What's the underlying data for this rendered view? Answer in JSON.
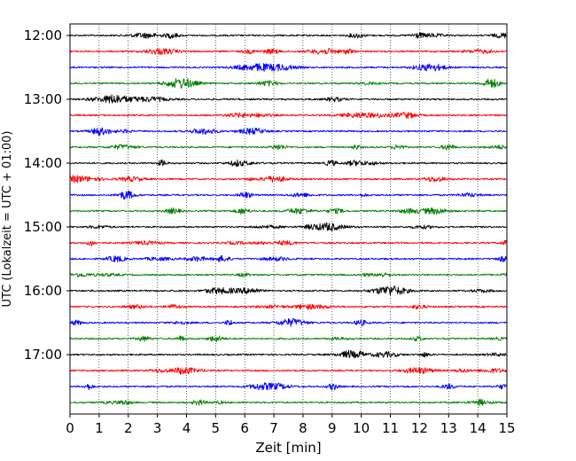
{
  "chart_data": {
    "type": "line",
    "title": "",
    "xlabel": "Zeit  [min]",
    "ylabel": "UTC (Lokalzeit = UTC + 01:00)",
    "xlim": [
      0,
      15
    ],
    "xticks": [
      "0",
      "1",
      "2",
      "3",
      "4",
      "5",
      "6",
      "7",
      "8",
      "9",
      "10",
      "11",
      "12",
      "13",
      "14",
      "15"
    ],
    "ytick_labels": [
      "12:00",
      "13:00",
      "14:00",
      "15:00",
      "16:00",
      "17:00"
    ],
    "trace_start_times": [
      "12:00",
      "12:15",
      "12:30",
      "12:45",
      "13:00",
      "13:15",
      "13:30",
      "13:45",
      "14:00",
      "14:15",
      "14:30",
      "14:45",
      "15:00",
      "15:15",
      "15:30",
      "15:45",
      "16:00",
      "16:15",
      "16:30",
      "16:45",
      "17:00",
      "17:15",
      "17:30",
      "17:45"
    ],
    "trace_minutes_each": 15,
    "trace_colors": [
      "#000000",
      "#ff0000",
      "#0000ff",
      "#008000"
    ],
    "grid": "vertical dotted lines at each minute",
    "legend": "none"
  }
}
